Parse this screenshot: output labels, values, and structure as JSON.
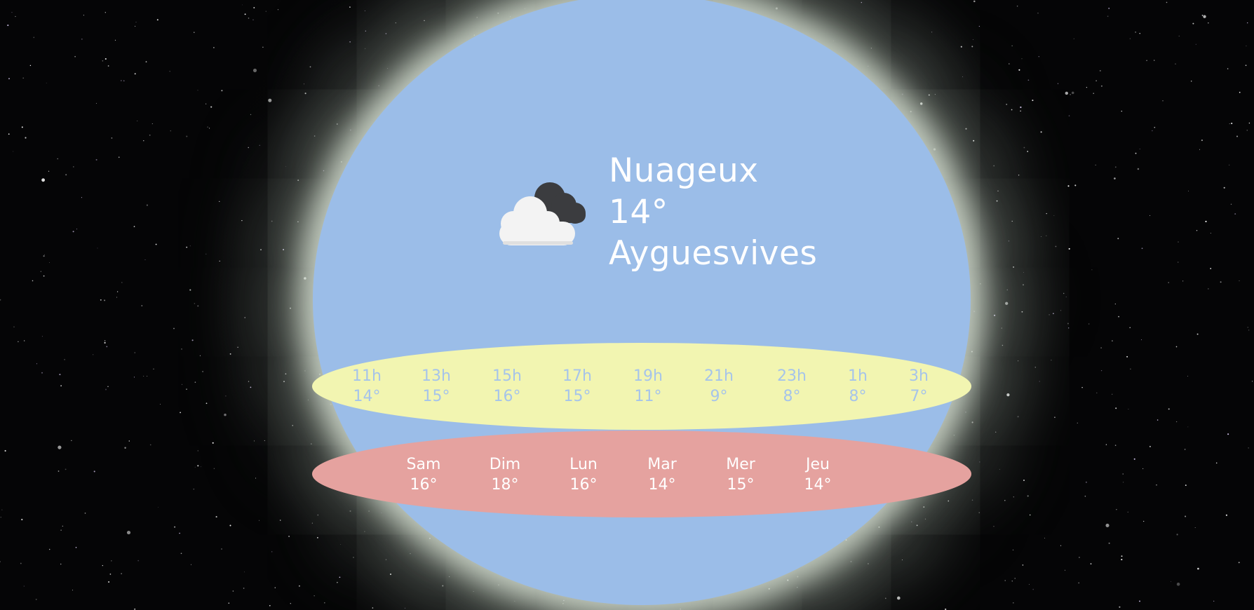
{
  "current": {
    "condition": "Nuageux",
    "temperature": "14°",
    "city": "Ayguesvives",
    "icon": "cloudy-icon"
  },
  "hourly": [
    {
      "time": "11h",
      "temp": "14°"
    },
    {
      "time": "13h",
      "temp": "15°"
    },
    {
      "time": "15h",
      "temp": "16°"
    },
    {
      "time": "17h",
      "temp": "15°"
    },
    {
      "time": "19h",
      "temp": "11°"
    },
    {
      "time": "21h",
      "temp": "9°"
    },
    {
      "time": "23h",
      "temp": "8°"
    },
    {
      "time": "1h",
      "temp": "8°"
    },
    {
      "time": "3h",
      "temp": "7°"
    }
  ],
  "daily": [
    {
      "day": "Sam",
      "temp": "16°"
    },
    {
      "day": "Dim",
      "temp": "18°"
    },
    {
      "day": "Lun",
      "temp": "16°"
    },
    {
      "day": "Mar",
      "temp": "14°"
    },
    {
      "day": "Mer",
      "temp": "15°"
    },
    {
      "day": "Jeu",
      "temp": "14°"
    }
  ],
  "colors": {
    "globe": "#9bbde8",
    "hourly_band": "#f2f5b1",
    "daily_band": "#e5a29f",
    "hourly_text": "#a6c4ea",
    "text": "#ffffff"
  }
}
